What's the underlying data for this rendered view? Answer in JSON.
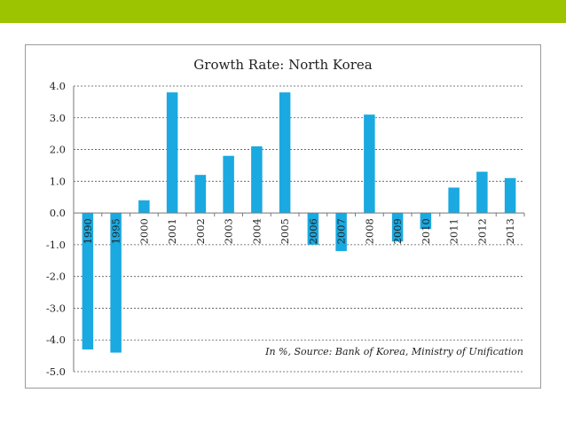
{
  "page": {
    "bar_color": "#f0f0f0",
    "bar_accent": "#9dc400"
  },
  "chart_data": {
    "type": "bar",
    "title": "Growth Rate: North Korea",
    "note": "In %, Source: Bank of Korea, Ministry of Unification",
    "categories": [
      "1990",
      "1995",
      "2000",
      "2001",
      "2002",
      "2003",
      "2004",
      "2005",
      "2006",
      "2007",
      "2008",
      "2009",
      "2010",
      "2011",
      "2012",
      "2013"
    ],
    "series": [
      {
        "values": [
          -4.3,
          -4.4,
          0.4,
          3.8,
          1.2,
          1.8,
          2.1,
          3.8,
          -1.0,
          -1.2,
          3.1,
          -0.9,
          -0.5,
          0.8,
          1.3,
          1.1
        ],
        "color": "#1aa9e1"
      }
    ],
    "ylim": [
      -5,
      4
    ],
    "yticks": [
      "4.0",
      "3.0",
      "2.0",
      "1.0",
      "0.0",
      "-1.0",
      "-2.0",
      "-3.0",
      "-4.0",
      "-5.0"
    ],
    "grid": true,
    "legend": "none"
  }
}
